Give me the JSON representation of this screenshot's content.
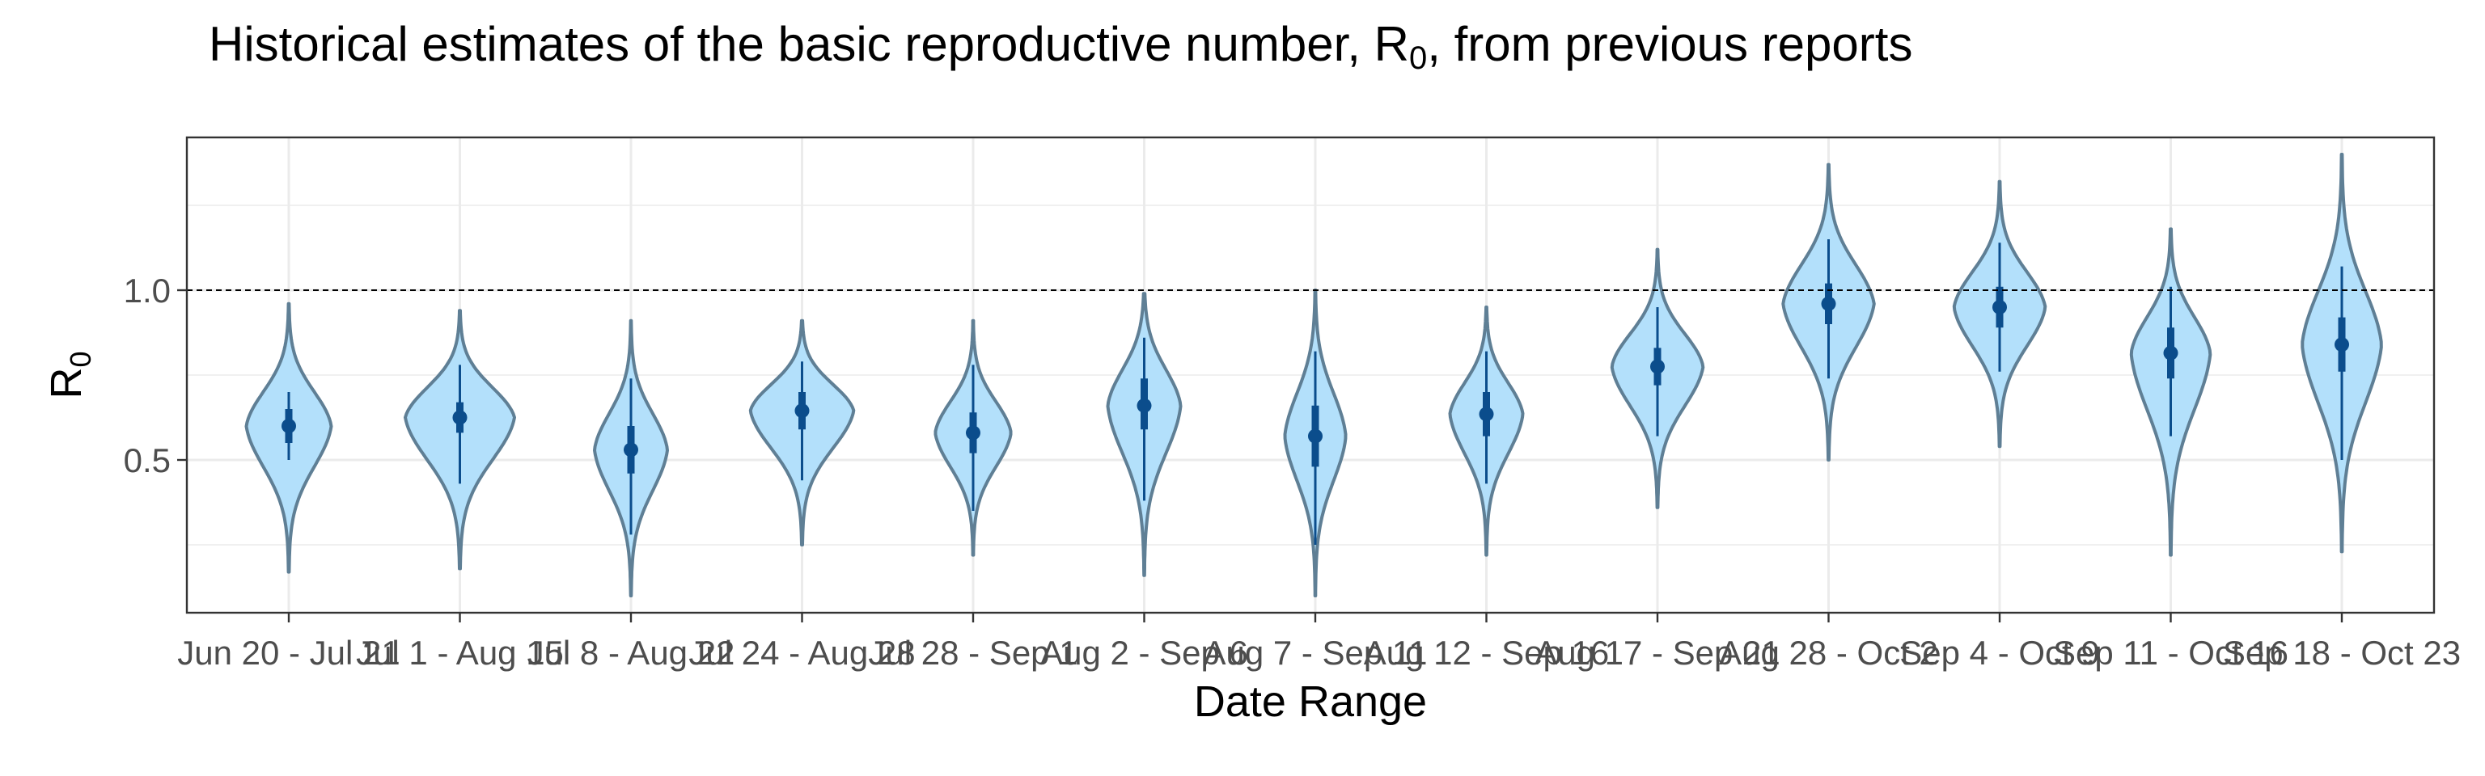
{
  "chart_data": {
    "type": "violin",
    "title": "Historical estimates of the basic reproductive number, R",
    "title_subscript": "0",
    "title_suffix": ", from previous reports",
    "xlabel": "Date Range",
    "ylabel": "R",
    "ylabel_subscript": "0",
    "ylim": [
      0.05,
      1.45
    ],
    "yticks": [
      0.5,
      1.0
    ],
    "ytick_labels": [
      "0.5",
      "1.0"
    ],
    "reference_line": 1.0,
    "grid": true,
    "categories": [
      "Jun 20 - Jul 21",
      "Jul 1 - Aug 15",
      "Jul 8 - Aug 22",
      "Jul 24 - Aug 28",
      "Jul 28 - Sep 1",
      "Aug 2 - Sep 6",
      "Aug 7 - Sep 11",
      "Aug 12 - Sep 16",
      "Aug 17 - Sep 21",
      "Aug 28 - Oct 2",
      "Sep 4 - Oct 9",
      "Sep 11 - Oct 16",
      "Sep 18 - Oct 23"
    ],
    "series": [
      {
        "median": 0.6,
        "q25": 0.55,
        "q75": 0.65,
        "lower95": 0.5,
        "upper95": 0.7,
        "min": 0.17,
        "max": 0.96,
        "width": 0.7
      },
      {
        "median": 0.625,
        "q25": 0.58,
        "q75": 0.67,
        "lower95": 0.43,
        "upper95": 0.78,
        "min": 0.18,
        "max": 0.94,
        "width": 0.9
      },
      {
        "median": 0.53,
        "q25": 0.46,
        "q75": 0.6,
        "lower95": 0.28,
        "upper95": 0.74,
        "min": 0.1,
        "max": 0.91,
        "width": 0.6
      },
      {
        "median": 0.645,
        "q25": 0.59,
        "q75": 0.7,
        "lower95": 0.44,
        "upper95": 0.79,
        "min": 0.25,
        "max": 0.91,
        "width": 0.85
      },
      {
        "median": 0.58,
        "q25": 0.52,
        "q75": 0.64,
        "lower95": 0.35,
        "upper95": 0.78,
        "min": 0.22,
        "max": 0.91,
        "width": 0.62
      },
      {
        "median": 0.66,
        "q25": 0.59,
        "q75": 0.74,
        "lower95": 0.38,
        "upper95": 0.86,
        "min": 0.16,
        "max": 0.99,
        "width": 0.6
      },
      {
        "median": 0.57,
        "q25": 0.48,
        "q75": 0.66,
        "lower95": 0.25,
        "upper95": 0.82,
        "min": 0.1,
        "max": 1.0,
        "width": 0.5
      },
      {
        "median": 0.635,
        "q25": 0.57,
        "q75": 0.7,
        "lower95": 0.43,
        "upper95": 0.82,
        "min": 0.22,
        "max": 0.95,
        "width": 0.6
      },
      {
        "median": 0.775,
        "q25": 0.72,
        "q75": 0.83,
        "lower95": 0.57,
        "upper95": 0.95,
        "min": 0.36,
        "max": 1.12,
        "width": 0.75
      },
      {
        "median": 0.96,
        "q25": 0.9,
        "q75": 1.02,
        "lower95": 0.74,
        "upper95": 1.15,
        "min": 0.5,
        "max": 1.37,
        "width": 0.75
      },
      {
        "median": 0.95,
        "q25": 0.89,
        "q75": 1.01,
        "lower95": 0.76,
        "upper95": 1.14,
        "min": 0.54,
        "max": 1.32,
        "width": 0.75
      },
      {
        "median": 0.815,
        "q25": 0.74,
        "q75": 0.89,
        "lower95": 0.57,
        "upper95": 1.01,
        "min": 0.22,
        "max": 1.18,
        "width": 0.65
      },
      {
        "median": 0.84,
        "q25": 0.76,
        "q75": 0.92,
        "lower95": 0.5,
        "upper95": 1.07,
        "min": 0.23,
        "max": 1.4,
        "width": 0.65
      }
    ],
    "colors": {
      "fill": "#b3e0fb",
      "outline": "#5f7f95",
      "interval": "#0b4d8c",
      "grid": "#ebebeb",
      "reference": "#000000"
    }
  }
}
